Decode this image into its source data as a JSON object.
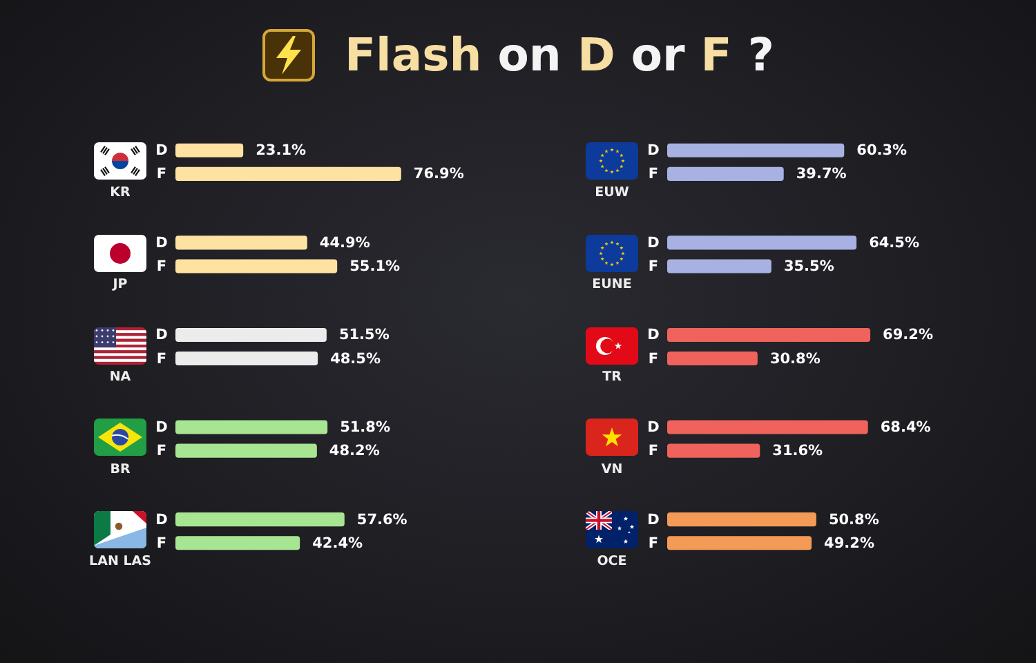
{
  "chart_data": [
    {
      "type": "bar",
      "orientation": "horizontal",
      "title": "Flash on D or F ?",
      "categories": [
        "KR",
        "JP",
        "NA",
        "BR",
        "LAN LAS"
      ],
      "series": [
        {
          "name": "D",
          "values": [
            23.1,
            44.9,
            51.5,
            51.8,
            57.6
          ],
          "colors": [
            "#fde2a2",
            "#fde2a2",
            "#ececec",
            "#a8e592",
            "#a8e592"
          ],
          "value_labels": [
            "23.1%",
            "44.9%",
            "51.5%",
            "51.8%",
            "57.6%"
          ]
        },
        {
          "name": "F",
          "values": [
            76.9,
            55.1,
            48.5,
            48.2,
            42.4
          ],
          "colors": [
            "#fde2a2",
            "#fde2a2",
            "#ececec",
            "#a8e592",
            "#a8e592"
          ],
          "value_labels": [
            "76.9%",
            "55.1%",
            "48.5%",
            "48.2%",
            "42.4%"
          ]
        }
      ],
      "tick_labels": "y"
    },
    {
      "type": "bar",
      "orientation": "horizontal",
      "categories": [
        "EUW",
        "EUNE",
        "TR",
        "VN",
        "OCE"
      ],
      "series": [
        {
          "name": "D",
          "values": [
            60.3,
            64.5,
            69.2,
            68.4,
            50.8
          ],
          "colors": [
            "#a7b1e2",
            "#a7b1e2",
            "#f0625c",
            "#f0625c",
            "#f49a57"
          ],
          "value_labels": [
            "60.3%",
            "64.5%",
            "69.2%",
            "68.4%",
            "50.8%"
          ]
        },
        {
          "name": "F",
          "values": [
            39.7,
            35.5,
            30.8,
            31.6,
            49.2
          ],
          "colors": [
            "#a7b1e2",
            "#a7b1e2",
            "#f0625c",
            "#f0625c",
            "#f49a57"
          ],
          "value_labels": [
            "39.7%",
            "35.5%",
            "30.8%",
            "31.6%",
            "49.2%"
          ]
        }
      ],
      "tick_labels": "y"
    }
  ]
}
